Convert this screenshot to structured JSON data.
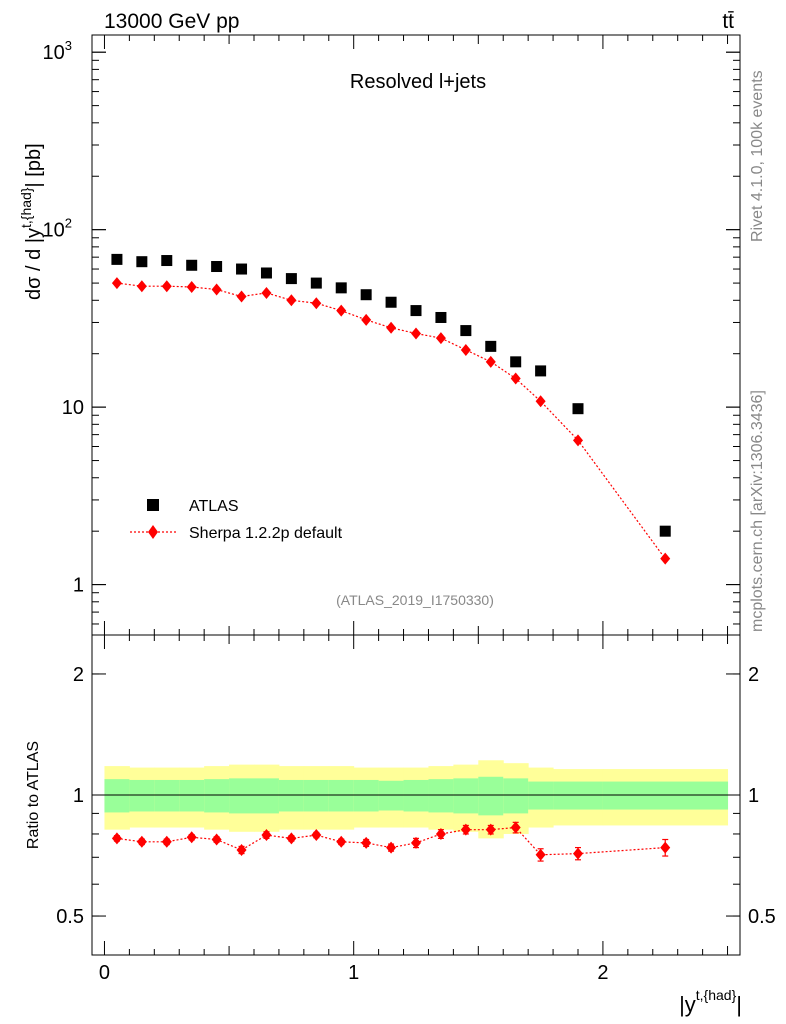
{
  "header": {
    "left_title": "13000 GeV pp",
    "right_title": "tt̄"
  },
  "side_labels": {
    "rivet": "Rivet 4.1.0,  100k events",
    "mcplots": "mcplots.cern.ch [arXiv:1306.3436]"
  },
  "colors": {
    "data": "#000000",
    "mc": "#ff0000",
    "band_inner": "#99ff99",
    "band_outer": "#ffff99"
  },
  "chart_data": [
    {
      "type": "scatter",
      "title": "Resolved l+jets",
      "analysis_id": "(ATLAS_2019_I1750330)",
      "ylabel": "dσ / d |y^{t,{had}}| [pb]",
      "ylabel_main": "dσ / d |y",
      "ylabel_sup": "t,{had}",
      "ylabel_tail": "| [pb]",
      "xlabel": "",
      "yscale": "log",
      "ylim": [
        0.52,
        1250
      ],
      "xlim": [
        -0.05,
        2.55
      ],
      "yticks": [
        {
          "value": 1,
          "label": "1"
        },
        {
          "value": 10,
          "label": "10"
        },
        {
          "value": 100,
          "label": "10",
          "exp": "2"
        },
        {
          "value": 1000,
          "label": "10",
          "exp": "3"
        }
      ],
      "legend": {
        "position": "lower-left",
        "entries": [
          "ATLAS",
          "Sherpa 1.2.2p default"
        ]
      },
      "series": [
        {
          "name": "ATLAS",
          "marker": "square",
          "x": [
            0.05,
            0.15,
            0.25,
            0.35,
            0.45,
            0.55,
            0.65,
            0.75,
            0.85,
            0.95,
            1.05,
            1.15,
            1.25,
            1.35,
            1.45,
            1.55,
            1.65,
            1.75,
            1.9,
            2.25
          ],
          "y": [
            68,
            66,
            67,
            63,
            62,
            60,
            57,
            53,
            50,
            47,
            43,
            39,
            35,
            32,
            27,
            22,
            18,
            16,
            9.8,
            2.0
          ]
        },
        {
          "name": "Sherpa 1.2.2p default",
          "marker": "diamond",
          "x": [
            0.05,
            0.15,
            0.25,
            0.35,
            0.45,
            0.55,
            0.65,
            0.75,
            0.85,
            0.95,
            1.05,
            1.15,
            1.25,
            1.35,
            1.45,
            1.55,
            1.65,
            1.75,
            1.9,
            2.25
          ],
          "y": [
            50,
            48,
            48,
            47.5,
            46,
            42,
            44,
            40,
            38.5,
            35,
            31,
            28,
            26,
            24.5,
            21,
            18,
            14.5,
            10.8,
            6.5,
            1.4
          ]
        }
      ]
    },
    {
      "type": "scatter",
      "title": "",
      "ylabel": "Ratio to ATLAS",
      "xlabel": "|y^{t,{had}}|",
      "xlabel_main": "|y",
      "xlabel_sup": "t,{had}",
      "xlabel_tail": "|",
      "yscale": "log",
      "ylim": [
        0.4,
        2.5
      ],
      "xlim": [
        -0.05,
        2.55
      ],
      "yticks": [
        {
          "value": 0.5,
          "label": "0.5"
        },
        {
          "value": 1,
          "label": "1"
        },
        {
          "value": 2,
          "label": "2"
        }
      ],
      "xticks": [
        {
          "value": 0,
          "label": "0"
        },
        {
          "value": 1,
          "label": "1"
        },
        {
          "value": 2,
          "label": "2"
        }
      ],
      "reference_line": 1,
      "bands": {
        "edges": [
          0.0,
          0.1,
          0.2,
          0.3,
          0.4,
          0.5,
          0.6,
          0.7,
          0.8,
          0.9,
          1.0,
          1.1,
          1.2,
          1.3,
          1.4,
          1.5,
          1.6,
          1.7,
          1.8,
          2.0,
          2.5
        ],
        "inner": [
          0.095,
          0.09,
          0.09,
          0.09,
          0.095,
          0.1,
          0.1,
          0.09,
          0.09,
          0.09,
          0.09,
          0.085,
          0.09,
          0.095,
          0.1,
          0.11,
          0.1,
          0.08,
          0.08,
          0.08
        ],
        "outer": [
          0.18,
          0.17,
          0.17,
          0.17,
          0.18,
          0.19,
          0.19,
          0.18,
          0.18,
          0.18,
          0.17,
          0.17,
          0.17,
          0.18,
          0.19,
          0.22,
          0.2,
          0.17,
          0.16,
          0.16
        ]
      },
      "series": [
        {
          "name": "Sherpa 1.2.2p default",
          "marker": "diamond",
          "x": [
            0.05,
            0.15,
            0.25,
            0.35,
            0.45,
            0.55,
            0.65,
            0.75,
            0.85,
            0.95,
            1.05,
            1.15,
            1.25,
            1.35,
            1.45,
            1.55,
            1.65,
            1.75,
            1.9,
            2.25
          ],
          "y": [
            0.78,
            0.765,
            0.765,
            0.785,
            0.775,
            0.73,
            0.795,
            0.78,
            0.795,
            0.765,
            0.76,
            0.74,
            0.76,
            0.8,
            0.82,
            0.82,
            0.83,
            0.71,
            0.715,
            0.74
          ],
          "yerr": [
            0.012,
            0.012,
            0.012,
            0.012,
            0.012,
            0.015,
            0.015,
            0.012,
            0.012,
            0.012,
            0.015,
            0.015,
            0.02,
            0.02,
            0.02,
            0.02,
            0.025,
            0.025,
            0.025,
            0.035
          ]
        }
      ]
    }
  ]
}
